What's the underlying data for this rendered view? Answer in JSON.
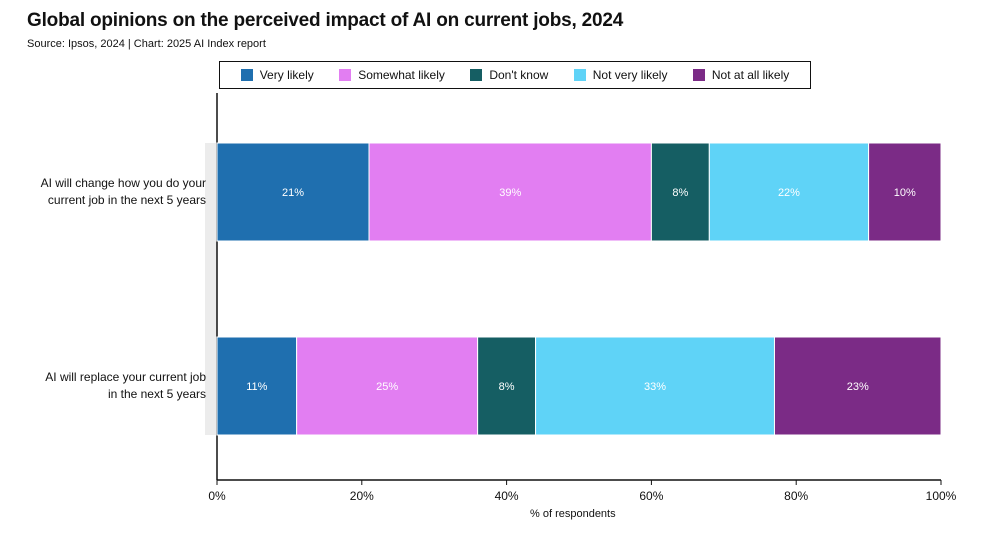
{
  "title": "Global opinions on the perceived impact of AI on current jobs, 2024",
  "subtitle": "Source: Ipsos, 2024 | Chart: 2025 AI Index report",
  "chart_data": {
    "type": "bar",
    "orientation": "horizontal",
    "stacked": true,
    "categories": [
      "AI will change how you do your current job in the next 5 years",
      "AI will replace your current job in the next 5 years"
    ],
    "category_lines": [
      [
        "AI will change how you do your",
        "current job in the next 5 years"
      ],
      [
        "AI will replace your current job",
        "in the next 5 years"
      ]
    ],
    "series": [
      {
        "name": "Very likely",
        "color": "#1f6faf",
        "values": [
          21,
          11
        ]
      },
      {
        "name": "Somewhat likely",
        "color": "#e27ef2",
        "values": [
          39,
          25
        ]
      },
      {
        "name": "Don't know",
        "color": "#155e63",
        "values": [
          8,
          8
        ]
      },
      {
        "name": "Not very likely",
        "color": "#5fd3f7",
        "values": [
          22,
          33
        ]
      },
      {
        "name": "Not at all likely",
        "color": "#7b2b86",
        "values": [
          10,
          23
        ]
      }
    ],
    "data_labels": [
      [
        "21%",
        "39%",
        "8%",
        "22%",
        "10%"
      ],
      [
        "11%",
        "25%",
        "8%",
        "33%",
        "23%"
      ]
    ],
    "xlabel": "% of respondents",
    "xlim": [
      0,
      100
    ],
    "xticks": [
      "0%",
      "20%",
      "40%",
      "60%",
      "80%",
      "100%"
    ],
    "grid": false,
    "legend_position": "top"
  }
}
